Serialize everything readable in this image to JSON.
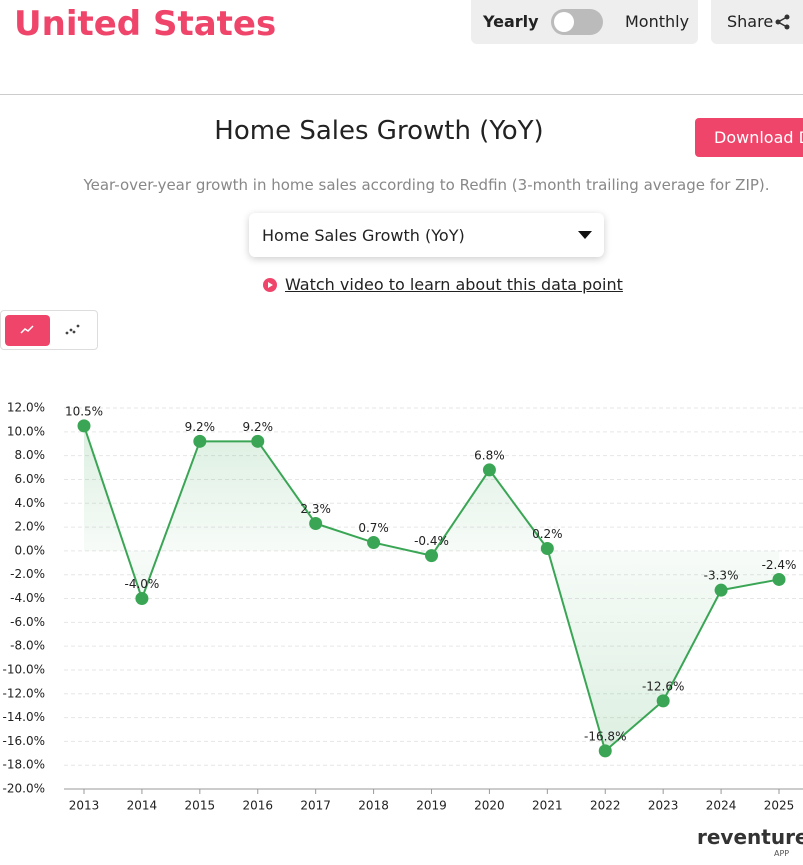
{
  "header": {
    "location": "United States",
    "toggle_left": "Yearly",
    "toggle_right": "Monthly",
    "share": "Share"
  },
  "title": "Home Sales Growth (YoY)",
  "download": "Download Data",
  "subtitle": "Year-over-year growth in home sales according to Redfin (3-month trailing average for ZIP).",
  "dropdown": "Home Sales Growth (YoY)",
  "video_link": "Watch video to learn about this data point",
  "brand": {
    "name": "reventure",
    "tag": "APP"
  },
  "chart_data": {
    "type": "line",
    "categories": [
      "2013",
      "2014",
      "2015",
      "2016",
      "2017",
      "2018",
      "2019",
      "2020",
      "2021",
      "2022",
      "2023",
      "2024",
      "2025"
    ],
    "series": [
      {
        "name": "Home Sales Growth (YoY)",
        "color": "#3aa655",
        "values": [
          10.5,
          -4.0,
          9.2,
          9.2,
          2.3,
          0.7,
          -0.4,
          6.8,
          0.2,
          -16.8,
          -12.6,
          -3.3,
          -2.4
        ],
        "value_labels": [
          "10.5%",
          "-4.0%",
          "9.2%",
          "9.2%",
          "2.3%",
          "0.7%",
          "-0.4%",
          "6.8%",
          "0.2%",
          "-16.8%",
          "-12.6%",
          "-3.3%",
          "-2.4%"
        ]
      }
    ],
    "ylim": [
      -20,
      12
    ],
    "yticks": [
      {
        "value": -20,
        "label": "-20.0%"
      },
      {
        "value": -18,
        "label": "-18.0%"
      },
      {
        "value": -16,
        "label": "-16.0%"
      },
      {
        "value": -14,
        "label": "-14.0%"
      },
      {
        "value": -12,
        "label": "-12.0%"
      },
      {
        "value": -10,
        "label": "-10.0%"
      },
      {
        "value": -8,
        "label": "-8.0%"
      },
      {
        "value": -6,
        "label": "-6.0%"
      },
      {
        "value": -4,
        "label": "-4.0%"
      },
      {
        "value": -2,
        "label": "-2.0%"
      },
      {
        "value": 0,
        "label": "0.0%"
      },
      {
        "value": 2,
        "label": "2.0%"
      },
      {
        "value": 4,
        "label": "4.0%"
      },
      {
        "value": 6,
        "label": "6.0%"
      },
      {
        "value": 8,
        "label": "8.0%"
      },
      {
        "value": 10,
        "label": "10.0%"
      },
      {
        "value": 12,
        "label": "12.0%"
      }
    ],
    "grid": true
  }
}
